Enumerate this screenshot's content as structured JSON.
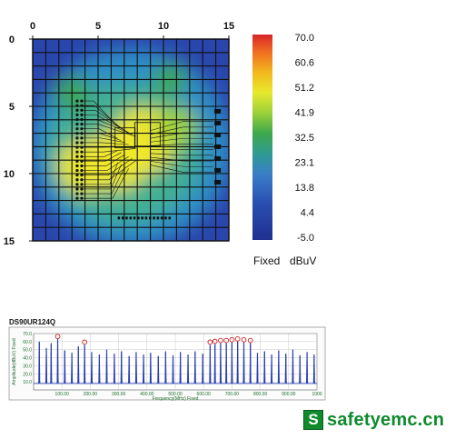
{
  "chart_data": [
    {
      "type": "heatmap",
      "x_ticks": [
        "0",
        "5",
        "10",
        "15"
      ],
      "y_ticks": [
        "0",
        "5",
        "10",
        "15"
      ],
      "xlim": [
        0,
        15
      ],
      "ylim": [
        0,
        15
      ],
      "colorbar": {
        "labels": [
          "70.0",
          "60.6",
          "51.2",
          "41.9",
          "32.5",
          "23.1",
          "13.8",
          "4.4",
          "-5.0"
        ],
        "min": -5.0,
        "max": 70.0,
        "mode_label": "Fixed",
        "unit_label": "dBuV",
        "colors": [
          "#d7262a",
          "#f2a11e",
          "#f2e82a",
          "#9dd23a",
          "#3ea84b",
          "#2f9b93",
          "#3a7ec8",
          "#2a4fb1",
          "#1f2f8f"
        ]
      },
      "hotspots": [
        {
          "x": 8.5,
          "y": 7.5,
          "value": 55
        },
        {
          "x": 6.5,
          "y": 9.0,
          "value": 52
        },
        {
          "x": 4.0,
          "y": 9.5,
          "value": 48
        },
        {
          "x": 11.0,
          "y": 6.5,
          "value": 40
        },
        {
          "x": 3.0,
          "y": 4.0,
          "value": 36
        },
        {
          "x": 10.5,
          "y": 3.0,
          "value": 35
        }
      ],
      "grid": true
    },
    {
      "type": "line",
      "title": "DS90UR124Q",
      "xlabel": "Frequency(MHz) Fixed",
      "ylabel": "Amplitude(dBuV) Fixed",
      "xlim": [
        0,
        1000
      ],
      "ylim": [
        0,
        70
      ],
      "x_ticks": [
        "100.00",
        "200.00",
        "300.00",
        "400.00",
        "500.00",
        "600.00",
        "700.00",
        "800.00",
        "900.00",
        "1000"
      ],
      "y_ticks": [
        "70.0",
        "60.0",
        "50.0",
        "40.0",
        "30.0",
        "20.0",
        "10.0"
      ],
      "peaks": [
        {
          "x": 20,
          "y": 60
        },
        {
          "x": 45,
          "y": 52
        },
        {
          "x": 62,
          "y": 58
        },
        {
          "x": 85,
          "y": 63
        },
        {
          "x": 110,
          "y": 49
        },
        {
          "x": 135,
          "y": 46
        },
        {
          "x": 158,
          "y": 54
        },
        {
          "x": 180,
          "y": 56
        },
        {
          "x": 205,
          "y": 47
        },
        {
          "x": 232,
          "y": 44
        },
        {
          "x": 258,
          "y": 50
        },
        {
          "x": 285,
          "y": 45
        },
        {
          "x": 310,
          "y": 48
        },
        {
          "x": 337,
          "y": 42
        },
        {
          "x": 362,
          "y": 47
        },
        {
          "x": 388,
          "y": 44
        },
        {
          "x": 413,
          "y": 46
        },
        {
          "x": 440,
          "y": 42
        },
        {
          "x": 466,
          "y": 48
        },
        {
          "x": 492,
          "y": 43
        },
        {
          "x": 518,
          "y": 47
        },
        {
          "x": 545,
          "y": 44
        },
        {
          "x": 570,
          "y": 48
        },
        {
          "x": 597,
          "y": 45
        },
        {
          "x": 623,
          "y": 56
        },
        {
          "x": 640,
          "y": 57
        },
        {
          "x": 660,
          "y": 58
        },
        {
          "x": 680,
          "y": 58
        },
        {
          "x": 700,
          "y": 59
        },
        {
          "x": 720,
          "y": 60
        },
        {
          "x": 742,
          "y": 59
        },
        {
          "x": 765,
          "y": 58
        },
        {
          "x": 790,
          "y": 46
        },
        {
          "x": 815,
          "y": 48
        },
        {
          "x": 840,
          "y": 44
        },
        {
          "x": 865,
          "y": 49
        },
        {
          "x": 890,
          "y": 45
        },
        {
          "x": 915,
          "y": 50
        },
        {
          "x": 940,
          "y": 43
        },
        {
          "x": 965,
          "y": 47
        },
        {
          "x": 990,
          "y": 44
        }
      ],
      "marked_peaks": [
        85,
        180,
        623,
        640,
        660,
        680,
        700,
        720,
        742,
        765
      ],
      "line_color": "#2a3fb0",
      "marker_color": "#cc2222"
    }
  ],
  "brand": {
    "icon": "S",
    "text": "safetyemc.cn",
    "color": "#0f8a2d"
  }
}
